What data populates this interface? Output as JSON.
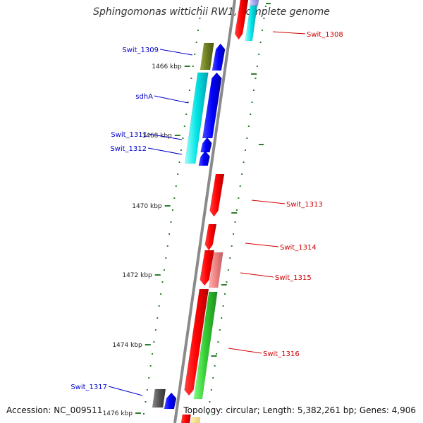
{
  "title": "Sphingomonas wittichii RW1, complete genome",
  "footer": {
    "accession": "Accession: NC_009511",
    "summary": "Topology: circular; Length: 5,382,261 bp; Genes: 4,906"
  },
  "colors": {
    "backbone": "#8a8a8a",
    "tick": "#2e7d2e",
    "forward_label": "#0000c8",
    "reverse_label": "#d00000"
  },
  "position_ticks": [
    {
      "label": "1466 kbp",
      "kbp": 1466
    },
    {
      "label": "1468 kbp",
      "kbp": 1468
    },
    {
      "label": "1470 kbp",
      "kbp": 1470
    },
    {
      "label": "1472 kbp",
      "kbp": 1472
    },
    {
      "label": "1474 kbp",
      "kbp": 1474
    },
    {
      "label": "1476 kbp",
      "kbp": 1476
    }
  ],
  "genes": [
    {
      "label": "Swit_1308",
      "strand": "reverse",
      "color": "#d00000"
    },
    {
      "label": "Swit_1309",
      "strand": "forward",
      "color": "#0000c8"
    },
    {
      "label": "sdhA",
      "strand": "forward",
      "color": "#0000c8"
    },
    {
      "label": "Swit_1311",
      "strand": "forward",
      "color": "#0000c8"
    },
    {
      "label": "Swit_1312",
      "strand": "forward",
      "color": "#0000c8"
    },
    {
      "label": "Swit_1313",
      "strand": "reverse",
      "color": "#d00000"
    },
    {
      "label": "Swit_1314",
      "strand": "reverse",
      "color": "#d00000"
    },
    {
      "label": "Swit_1315",
      "strand": "reverse",
      "color": "#d00000"
    },
    {
      "label": "Swit_1316",
      "strand": "reverse",
      "color": "#d00000"
    },
    {
      "label": "Swit_1317",
      "strand": "forward",
      "color": "#0000c8"
    }
  ]
}
